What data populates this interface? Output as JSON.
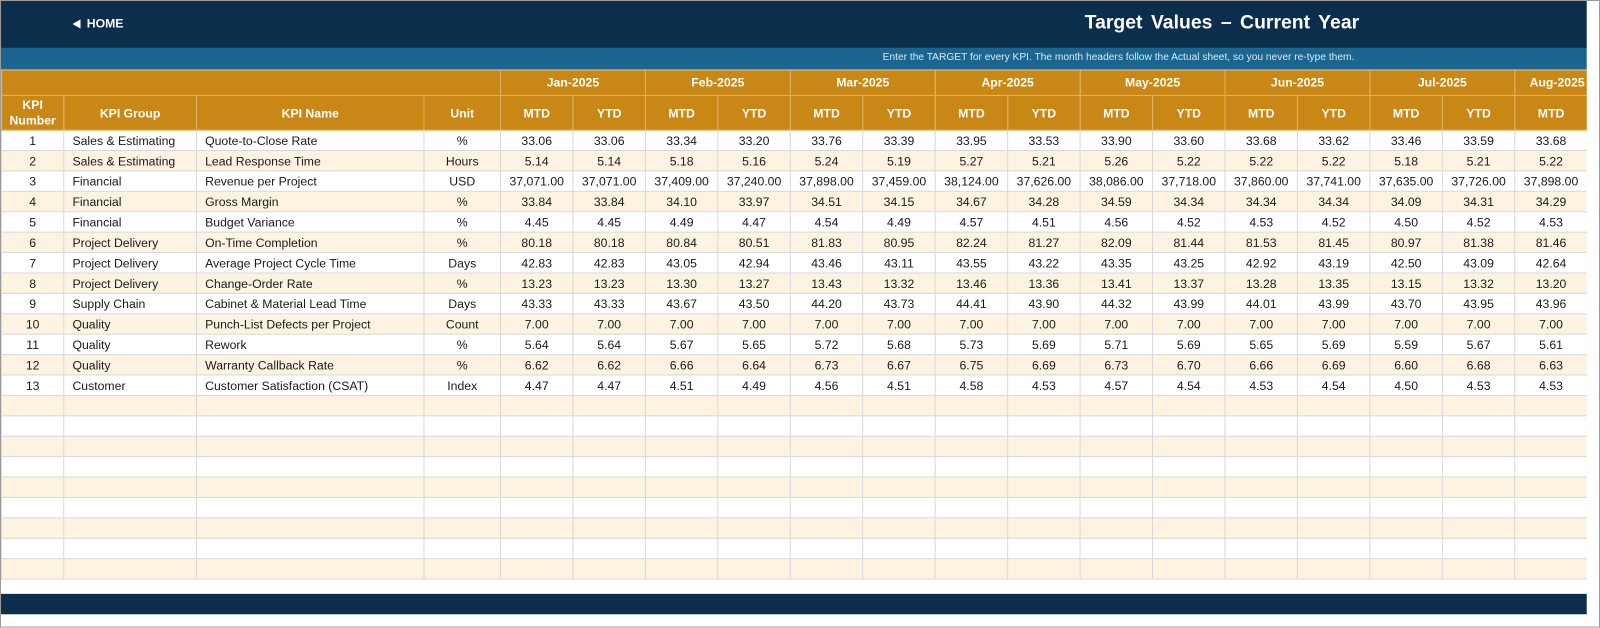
{
  "header": {
    "home": "HOME",
    "title": "Target Values – Current Year",
    "instruction": "Enter the TARGET for every KPI. The month headers follow the Actual sheet, so you never re-type them."
  },
  "table": {
    "columns": [
      "KPI Number",
      "KPI Group",
      "KPI Name",
      "Unit"
    ],
    "months": [
      "Jan-2025",
      "Feb-2025",
      "Mar-2025",
      "Apr-2025",
      "May-2025",
      "Jun-2025",
      "Jul-2025",
      "Aug-2025"
    ],
    "subheaders": [
      "MTD",
      "YTD",
      "MTD",
      "YTD",
      "MTD",
      "YTD",
      "MTD",
      "YTD",
      "MTD",
      "YTD",
      "MTD",
      "YTD",
      "MTD",
      "YTD",
      "MTD"
    ],
    "rows": [
      [
        "1",
        "Sales & Estimating",
        "Quote-to-Close Rate",
        "%",
        "33.06",
        "33.06",
        "33.34",
        "33.20",
        "33.76",
        "33.39",
        "33.95",
        "33.53",
        "33.90",
        "33.60",
        "33.68",
        "33.62",
        "33.46",
        "33.59",
        "33.68"
      ],
      [
        "2",
        "Sales & Estimating",
        "Lead Response Time",
        "Hours",
        "5.14",
        "5.14",
        "5.18",
        "5.16",
        "5.24",
        "5.19",
        "5.27",
        "5.21",
        "5.26",
        "5.22",
        "5.22",
        "5.22",
        "5.18",
        "5.21",
        "5.22"
      ],
      [
        "3",
        "Financial",
        "Revenue per Project",
        "USD",
        "37,071.00",
        "37,071.00",
        "37,409.00",
        "37,240.00",
        "37,898.00",
        "37,459.00",
        "38,124.00",
        "37,626.00",
        "38,086.00",
        "37,718.00",
        "37,860.00",
        "37,741.00",
        "37,635.00",
        "37,726.00",
        "37,898.00"
      ],
      [
        "4",
        "Financial",
        "Gross Margin",
        "%",
        "33.84",
        "33.84",
        "34.10",
        "33.97",
        "34.51",
        "34.15",
        "34.67",
        "34.28",
        "34.59",
        "34.34",
        "34.34",
        "34.34",
        "34.09",
        "34.31",
        "34.29"
      ],
      [
        "5",
        "Financial",
        "Budget Variance",
        "%",
        "4.45",
        "4.45",
        "4.49",
        "4.47",
        "4.54",
        "4.49",
        "4.57",
        "4.51",
        "4.56",
        "4.52",
        "4.53",
        "4.52",
        "4.50",
        "4.52",
        "4.53"
      ],
      [
        "6",
        "Project Delivery",
        "On-Time Completion",
        "%",
        "80.18",
        "80.18",
        "80.84",
        "80.51",
        "81.83",
        "80.95",
        "82.24",
        "81.27",
        "82.09",
        "81.44",
        "81.53",
        "81.45",
        "80.97",
        "81.38",
        "81.46"
      ],
      [
        "7",
        "Project Delivery",
        "Average Project Cycle Time",
        "Days",
        "42.83",
        "42.83",
        "43.05",
        "42.94",
        "43.46",
        "43.11",
        "43.55",
        "43.22",
        "43.35",
        "43.25",
        "42.92",
        "43.19",
        "42.50",
        "43.09",
        "42.64"
      ],
      [
        "8",
        "Project Delivery",
        "Change-Order Rate",
        "%",
        "13.23",
        "13.23",
        "13.30",
        "13.27",
        "13.43",
        "13.32",
        "13.46",
        "13.36",
        "13.41",
        "13.37",
        "13.28",
        "13.35",
        "13.15",
        "13.32",
        "13.20"
      ],
      [
        "9",
        "Supply Chain",
        "Cabinet & Material Lead Time",
        "Days",
        "43.33",
        "43.33",
        "43.67",
        "43.50",
        "44.20",
        "43.73",
        "44.41",
        "43.90",
        "44.32",
        "43.99",
        "44.01",
        "43.99",
        "43.70",
        "43.95",
        "43.96"
      ],
      [
        "10",
        "Quality",
        "Punch-List Defects per Project",
        "Count",
        "7.00",
        "7.00",
        "7.00",
        "7.00",
        "7.00",
        "7.00",
        "7.00",
        "7.00",
        "7.00",
        "7.00",
        "7.00",
        "7.00",
        "7.00",
        "7.00",
        "7.00"
      ],
      [
        "11",
        "Quality",
        "Rework",
        "%",
        "5.64",
        "5.64",
        "5.67",
        "5.65",
        "5.72",
        "5.68",
        "5.73",
        "5.69",
        "5.71",
        "5.69",
        "5.65",
        "5.69",
        "5.59",
        "5.67",
        "5.61"
      ],
      [
        "12",
        "Quality",
        "Warranty Callback Rate",
        "%",
        "6.62",
        "6.62",
        "6.66",
        "6.64",
        "6.73",
        "6.67",
        "6.75",
        "6.69",
        "6.73",
        "6.70",
        "6.66",
        "6.69",
        "6.60",
        "6.68",
        "6.63"
      ],
      [
        "13",
        "Customer",
        "Customer Satisfaction (CSAT)",
        "Index",
        "4.47",
        "4.47",
        "4.51",
        "4.49",
        "4.56",
        "4.51",
        "4.58",
        "4.53",
        "4.57",
        "4.54",
        "4.53",
        "4.54",
        "4.50",
        "4.53",
        "4.53"
      ]
    ]
  }
}
